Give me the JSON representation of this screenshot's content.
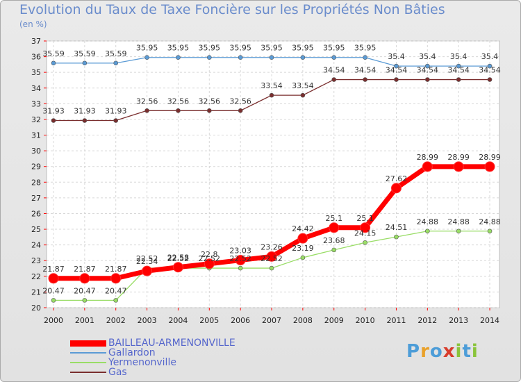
{
  "title": "Evolution du Taux de Taxe Foncière sur les Propriétés Non Bâties",
  "unit": "(en %)",
  "logo": [
    "P",
    "r",
    "o",
    "x",
    "i",
    "t",
    "i"
  ],
  "logo_colors": [
    "#4d9dd8",
    "#e9a12a",
    "#4d9dd8",
    "#d83c2c",
    "#8ac43a",
    "#4d9dd8",
    "#8ac43a"
  ],
  "chart_data": {
    "type": "line",
    "x": [
      "2000",
      "2001",
      "2002",
      "2003",
      "2004",
      "2005",
      "2006",
      "2007",
      "2008",
      "2009",
      "2010",
      "2011",
      "2012",
      "2013",
      "2014"
    ],
    "y_ticks": [
      20,
      21,
      22,
      23,
      24,
      25,
      26,
      27,
      28,
      29,
      30,
      31,
      32,
      33,
      34,
      35,
      36,
      37
    ],
    "ylim": [
      20,
      37
    ],
    "grid": true,
    "legend_position": "bottom-left",
    "series": [
      {
        "name": "BAILLEAU-ARMENONVILLE",
        "color": "#ff0000",
        "values": [
          21.87,
          21.87,
          21.87,
          22.34,
          22.58,
          22.8,
          23.03,
          23.26,
          24.42,
          25.1,
          25.1,
          27.62,
          28.99,
          28.99,
          28.99
        ]
      },
      {
        "name": "Gallardon",
        "color": "#5b9bd5",
        "values": [
          35.59,
          35.59,
          35.59,
          35.95,
          35.95,
          35.95,
          35.95,
          35.95,
          35.95,
          35.95,
          35.95,
          35.4,
          35.4,
          35.4,
          35.4
        ]
      },
      {
        "name": "Yermenonville",
        "color": "#99dd66",
        "values": [
          20.47,
          20.47,
          20.47,
          22.52,
          22.52,
          22.52,
          22.52,
          22.52,
          23.19,
          23.68,
          24.15,
          24.51,
          24.88,
          24.88,
          24.88
        ]
      },
      {
        "name": "Gas",
        "color": "#7a2e2e",
        "values": [
          31.93,
          31.93,
          31.93,
          32.56,
          32.56,
          32.56,
          32.56,
          33.54,
          33.54,
          34.54,
          34.54,
          34.54,
          34.54,
          34.54,
          34.54
        ]
      }
    ]
  }
}
